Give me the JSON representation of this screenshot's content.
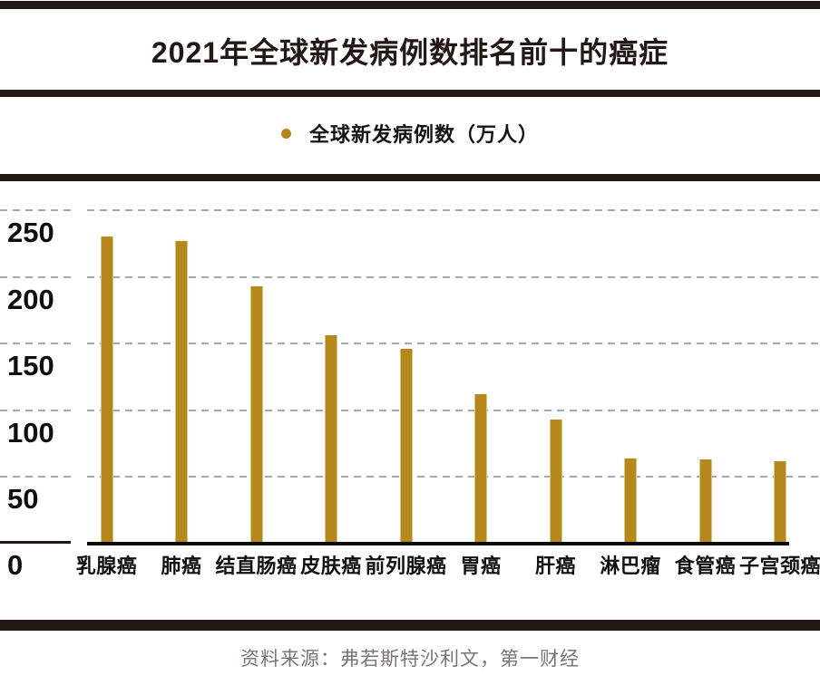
{
  "title": "2021年全球新发病例数排名前十的癌症",
  "legend": {
    "label": "全球新发病例数（万人）",
    "marker": "circle-dot-icon"
  },
  "source": "资料来源：弗若斯特沙利文，第一财经",
  "colors": {
    "bar": "#b5881d",
    "bar_edge": "#dcc67c",
    "rule": "#231815",
    "axis": "#0b0b0b",
    "grid": "#a8a8a8",
    "tick_text": "#0f0f0f",
    "source_text": "#7b7470"
  },
  "chart_data": {
    "type": "bar",
    "title": "2021年全球新发病例数排名前十的癌症",
    "legend_entries": [
      "全球新发病例数（万人）"
    ],
    "legend_position": "top-center",
    "categories": [
      "乳腺癌",
      "肺癌",
      "结直肠癌",
      "皮肤癌",
      "前列腺癌",
      "胃癌",
      "肝癌",
      "淋巴瘤",
      "食管癌",
      "子宫颈癌"
    ],
    "values": [
      230,
      227,
      193,
      156,
      146,
      112,
      93,
      64,
      63,
      62
    ],
    "series_name": "全球新发病例数（万人）",
    "xlabel": "",
    "ylabel": "",
    "ylim": [
      0,
      275
    ],
    "yticks": [
      0,
      50,
      100,
      150,
      200,
      250
    ],
    "grid": "horizontal-dashed"
  }
}
